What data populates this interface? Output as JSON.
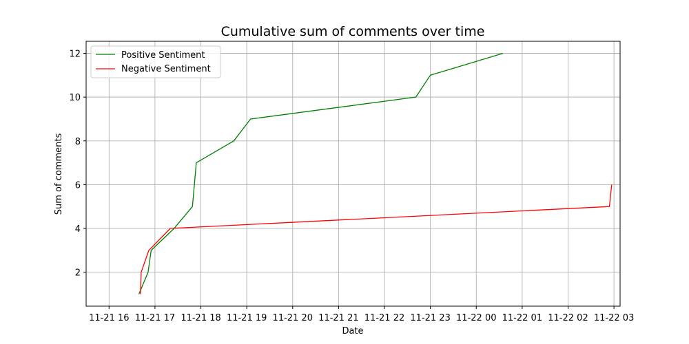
{
  "chart_data": {
    "type": "line",
    "title": "Cumulative sum of comments over time",
    "xlabel": "Date",
    "ylabel": "Sum of comments",
    "x_ticks": [
      {
        "t": "2023-11-21T16:00",
        "label": "11-21 16"
      },
      {
        "t": "2023-11-21T17:00",
        "label": "11-21 17"
      },
      {
        "t": "2023-11-21T18:00",
        "label": "11-21 18"
      },
      {
        "t": "2023-11-21T19:00",
        "label": "11-21 19"
      },
      {
        "t": "2023-11-21T20:00",
        "label": "11-21 20"
      },
      {
        "t": "2023-11-21T21:00",
        "label": "11-21 21"
      },
      {
        "t": "2023-11-21T22:00",
        "label": "11-21 22"
      },
      {
        "t": "2023-11-21T23:00",
        "label": "11-21 23"
      },
      {
        "t": "2023-11-22T00:00",
        "label": "11-22 00"
      },
      {
        "t": "2023-11-22T01:00",
        "label": "11-22 01"
      },
      {
        "t": "2023-11-22T02:00",
        "label": "11-22 02"
      },
      {
        "t": "2023-11-22T03:00",
        "label": "11-22 03"
      }
    ],
    "xlim": [
      "2023-11-21T15:30",
      "2023-11-22T03:08"
    ],
    "ylim": [
      0.45,
      12.55
    ],
    "y_ticks": [
      2,
      4,
      6,
      8,
      10,
      12
    ],
    "grid": true,
    "legend_position": "top-left",
    "series": [
      {
        "name": "Positive Sentiment",
        "color": "#008000",
        "points": [
          {
            "x": "2023-11-21T16:39",
            "y": 1
          },
          {
            "x": "2023-11-21T16:51",
            "y": 2
          },
          {
            "x": "2023-11-21T16:55",
            "y": 3
          },
          {
            "x": "2023-11-21T17:25",
            "y": 4
          },
          {
            "x": "2023-11-21T17:49",
            "y": 5
          },
          {
            "x": "2023-11-21T17:54",
            "y": 7
          },
          {
            "x": "2023-11-21T18:43",
            "y": 8
          },
          {
            "x": "2023-11-21T19:05",
            "y": 9
          },
          {
            "x": "2023-11-21T22:41",
            "y": 10
          },
          {
            "x": "2023-11-21T23:00",
            "y": 11
          },
          {
            "x": "2023-11-22T00:35",
            "y": 12
          }
        ]
      },
      {
        "name": "Negative Sentiment",
        "color": "#ff0000",
        "points": [
          {
            "x": "2023-11-21T16:41",
            "y": 1
          },
          {
            "x": "2023-11-21T16:42",
            "y": 2
          },
          {
            "x": "2023-11-21T16:52",
            "y": 3
          },
          {
            "x": "2023-11-21T17:20",
            "y": 4
          },
          {
            "x": "2023-11-22T02:54",
            "y": 5
          },
          {
            "x": "2023-11-22T02:57",
            "y": 6
          }
        ]
      }
    ]
  }
}
